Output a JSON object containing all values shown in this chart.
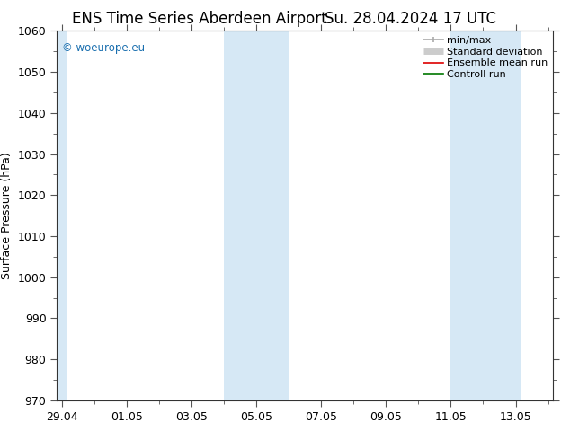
{
  "title": "ENS Time Series Aberdeen Airport",
  "title2": "Su. 28.04.2024 17 UTC",
  "ylabel": "Surface Pressure (hPa)",
  "ylim": [
    970,
    1060
  ],
  "yticks": [
    970,
    980,
    990,
    1000,
    1010,
    1020,
    1030,
    1040,
    1050,
    1060
  ],
  "xtick_labels": [
    "29.04",
    "01.05",
    "03.05",
    "05.05",
    "07.05",
    "09.05",
    "11.05",
    "13.05"
  ],
  "xtick_positions": [
    0,
    2,
    4,
    6,
    8,
    10,
    12,
    14
  ],
  "xlim": [
    -0.15,
    15.15
  ],
  "weekend_bands": [
    {
      "start": -0.15,
      "end": 0.15
    },
    {
      "start": 5.0,
      "end": 7.0
    },
    {
      "start": 12.0,
      "end": 14.15
    }
  ],
  "band_color": "#d6e8f5",
  "copyright_text": "© woeurope.eu",
  "copyright_color": "#1a6faf",
  "legend_items": [
    {
      "label": "min/max",
      "color": "#aaaaaa",
      "lw": 1.2
    },
    {
      "label": "Standard deviation",
      "color": "#cccccc",
      "lw": 5
    },
    {
      "label": "Ensemble mean run",
      "color": "#dd0000",
      "lw": 1.2
    },
    {
      "label": "Controll run",
      "color": "#007700",
      "lw": 1.2
    }
  ],
  "bg_color": "#ffffff",
  "title_fontsize": 12,
  "tick_fontsize": 9,
  "label_fontsize": 9,
  "legend_fontsize": 8
}
